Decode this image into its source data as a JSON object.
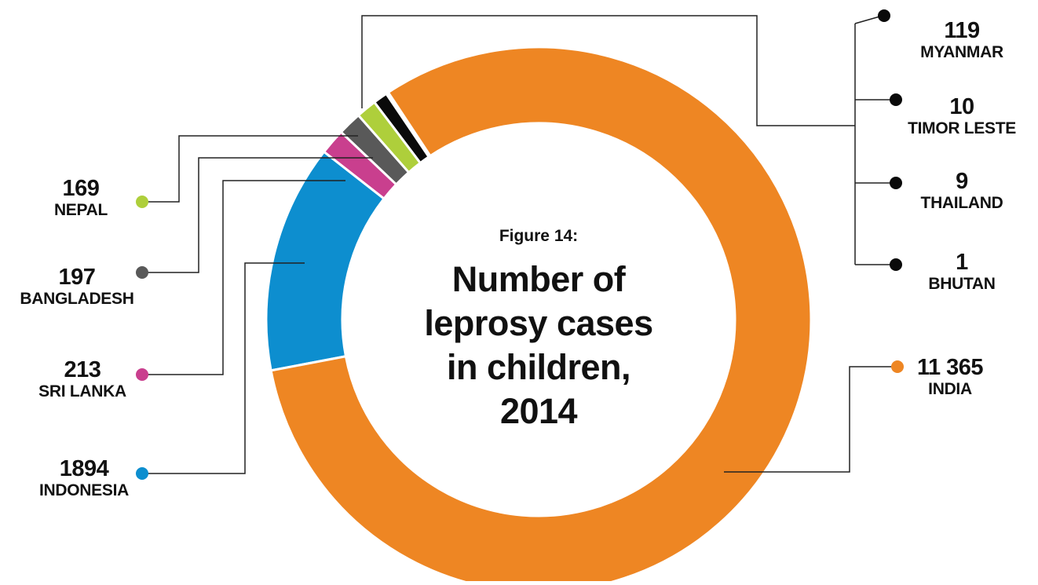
{
  "chart_data": {
    "type": "donut",
    "title": "Number of leprosy cases in children, 2014",
    "figure_label": "Figure 14:",
    "slices": [
      {
        "name": "INDIA",
        "value": 11365,
        "label": "11 365",
        "color": "#ee8623"
      },
      {
        "name": "INDONESIA",
        "value": 1894,
        "label": "1894",
        "color": "#0d8ecf"
      },
      {
        "name": "SRI LANKA",
        "value": 213,
        "label": "213",
        "color": "#c93f8e"
      },
      {
        "name": "BANGLADESH",
        "value": 197,
        "label": "197",
        "color": "#595959"
      },
      {
        "name": "NEPAL",
        "value": 169,
        "label": "169",
        "color": "#aecf3b"
      },
      {
        "name": "MYANMAR",
        "value": 119,
        "label": "119",
        "color": "#0a0a0a"
      },
      {
        "name": "TIMOR LESTE",
        "value": 10,
        "label": "10",
        "color": "#0a0a0a"
      },
      {
        "name": "THAILAND",
        "value": 9,
        "label": "9",
        "color": "#0a0a0a"
      },
      {
        "name": "BHUTAN",
        "value": 1,
        "label": "1",
        "color": "#0a0a0a"
      }
    ]
  },
  "title": {
    "figure": "Figure 14:",
    "main": "Number of leprosy cases in children, 2014"
  }
}
